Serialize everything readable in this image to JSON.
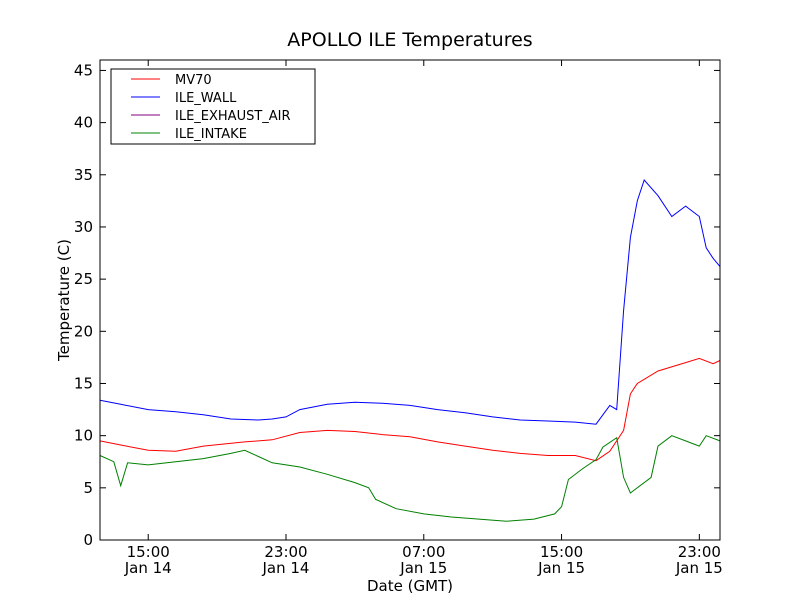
{
  "chart_data": {
    "type": "line",
    "title": "APOLLO ILE Temperatures",
    "xlabel": "Date (GMT)",
    "ylabel": "Temperature (C)",
    "xlim_hours": [
      11.5,
      56.5
    ],
    "ylim": [
      0,
      46
    ],
    "yticks": [
      0,
      5,
      10,
      15,
      20,
      25,
      30,
      35,
      40,
      45
    ],
    "xticks": [
      {
        "hour": 15,
        "line1": "15:00",
        "line2": "Jan 14"
      },
      {
        "hour": 25,
        "line1": "23:00",
        "line2": "Jan 14"
      },
      {
        "hour": 35,
        "line1": "07:00",
        "line2": "Jan 15"
      },
      {
        "hour": 45,
        "line1": "15:00",
        "line2": "Jan 15"
      },
      {
        "hour": 55,
        "line1": "23:00",
        "line2": "Jan 15"
      }
    ],
    "legend": "upper left",
    "series": [
      {
        "name": "MV70",
        "color": "#ff0000",
        "points": [
          [
            11.5,
            9.5
          ],
          [
            13,
            9.1
          ],
          [
            15,
            8.6
          ],
          [
            17,
            8.5
          ],
          [
            19,
            9.0
          ],
          [
            22,
            9.4
          ],
          [
            24,
            9.6
          ],
          [
            26,
            10.3
          ],
          [
            28,
            10.5
          ],
          [
            30,
            10.4
          ],
          [
            32,
            10.1
          ],
          [
            34,
            9.9
          ],
          [
            36,
            9.4
          ],
          [
            38,
            9.0
          ],
          [
            40,
            8.6
          ],
          [
            42,
            8.3
          ],
          [
            44,
            8.1
          ],
          [
            46,
            8.1
          ],
          [
            47.5,
            7.6
          ],
          [
            48.5,
            8.5
          ],
          [
            49.5,
            10.5
          ],
          [
            50,
            14.0
          ],
          [
            50.5,
            15.0
          ],
          [
            52,
            16.2
          ],
          [
            54,
            17.0
          ],
          [
            55,
            17.4
          ],
          [
            56,
            16.9
          ],
          [
            56.5,
            17.2
          ]
        ]
      },
      {
        "name": "ILE_WALL",
        "color": "#0000ff",
        "points": [
          [
            11.5,
            13.4
          ],
          [
            13,
            13.0
          ],
          [
            15,
            12.5
          ],
          [
            17,
            12.3
          ],
          [
            19,
            12.0
          ],
          [
            21,
            11.6
          ],
          [
            23,
            11.5
          ],
          [
            24,
            11.6
          ],
          [
            25,
            11.8
          ],
          [
            26,
            12.5
          ],
          [
            28,
            13.0
          ],
          [
            30,
            13.2
          ],
          [
            32,
            13.1
          ],
          [
            34,
            12.9
          ],
          [
            36,
            12.5
          ],
          [
            38,
            12.2
          ],
          [
            40,
            11.8
          ],
          [
            42,
            11.5
          ],
          [
            44,
            11.4
          ],
          [
            46,
            11.3
          ],
          [
            47.5,
            11.1
          ],
          [
            48.5,
            12.9
          ],
          [
            49,
            12.5
          ],
          [
            49.5,
            22.0
          ],
          [
            50,
            29.0
          ],
          [
            50.5,
            32.5
          ],
          [
            51,
            34.5
          ],
          [
            52,
            33.0
          ],
          [
            53,
            31.0
          ],
          [
            54,
            32.0
          ],
          [
            55,
            31.0
          ],
          [
            55.5,
            28.0
          ],
          [
            56,
            27.0
          ],
          [
            56.5,
            26.2
          ]
        ]
      },
      {
        "name": "ILE_EXHAUST_AIR",
        "color": "#800080",
        "points": []
      },
      {
        "name": "ILE_INTAKE",
        "color": "#008000",
        "points": [
          [
            11.5,
            8.1
          ],
          [
            12.5,
            7.5
          ],
          [
            13,
            5.2
          ],
          [
            13.5,
            7.4
          ],
          [
            15,
            7.2
          ],
          [
            17,
            7.5
          ],
          [
            19,
            7.8
          ],
          [
            21,
            8.3
          ],
          [
            22,
            8.6
          ],
          [
            23,
            8.0
          ],
          [
            24,
            7.4
          ],
          [
            26,
            7.0
          ],
          [
            28,
            6.3
          ],
          [
            30,
            5.5
          ],
          [
            31,
            5.0
          ],
          [
            31.5,
            3.9
          ],
          [
            33,
            3.0
          ],
          [
            35,
            2.5
          ],
          [
            37,
            2.2
          ],
          [
            39,
            2.0
          ],
          [
            41,
            1.8
          ],
          [
            43,
            2.0
          ],
          [
            44.5,
            2.5
          ],
          [
            45,
            3.2
          ],
          [
            45.5,
            5.8
          ],
          [
            46.5,
            6.8
          ],
          [
            47.5,
            7.7
          ],
          [
            48,
            8.9
          ],
          [
            49,
            9.8
          ],
          [
            49.5,
            6.0
          ],
          [
            50,
            4.5
          ],
          [
            51.5,
            6.0
          ],
          [
            52,
            9.0
          ],
          [
            53,
            10.0
          ],
          [
            54,
            9.5
          ],
          [
            55,
            9.0
          ],
          [
            55.5,
            10.0
          ],
          [
            56.5,
            9.5
          ]
        ]
      }
    ]
  }
}
